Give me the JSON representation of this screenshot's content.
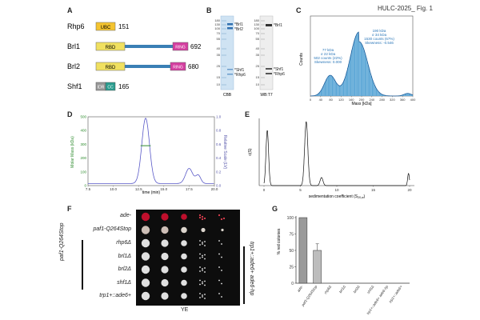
{
  "figure_title": "HULC-2025_ Fig. 1",
  "panels": {
    "A": {
      "label": "A",
      "proteins": [
        {
          "name": "Rhp6",
          "length": "151",
          "domains": [
            "UBC"
          ]
        },
        {
          "name": "Brl1",
          "length": "692",
          "domains": [
            "RBD",
            "RING"
          ]
        },
        {
          "name": "Brl2",
          "length": "680",
          "domains": [
            "RBD",
            "RING"
          ]
        },
        {
          "name": "Shf1",
          "length": "165",
          "domains": [
            "IDR",
            "CC"
          ]
        }
      ]
    },
    "B": {
      "label": "B",
      "markers": [
        "180",
        "130",
        "100",
        "70",
        "55",
        "40",
        "35",
        "25",
        "15",
        "10"
      ],
      "lane_labels": [
        "CBB",
        "WB:T7"
      ],
      "cbb_bands": [
        "Brl1",
        "Brl2",
        "Shf1",
        "Rhp6"
      ],
      "wb_bands": [
        "Brl1",
        "Shf1",
        "Rhp6"
      ],
      "star": "*"
    },
    "C": {
      "label": "C",
      "peak1": [
        "77 kDa",
        "σ 22 kDa",
        "502 counts (22%)",
        "Skewness: 0.000"
      ],
      "peak2": [
        "190 kDa",
        "σ 34 kDa",
        "1530 counts (67%)",
        "Skewness: -0.546"
      ],
      "xlabel": "Mass [kDa]",
      "ylabel": "Counts",
      "xticks": [
        "0",
        "40",
        "80",
        "120",
        "160",
        "200",
        "240",
        "280",
        "320",
        "360",
        "400"
      ]
    },
    "D": {
      "label": "D",
      "xlabel": "time (min)",
      "ylabel_left": "Molar Mass (kDa)",
      "ylabel_right": "Relative Scale (LV)",
      "xticks": [
        "7.5",
        "10.0",
        "12.5",
        "15.0",
        "17.5",
        "20.0"
      ],
      "yticks_left": [
        "0",
        "100",
        "200",
        "300",
        "400",
        "500"
      ],
      "yticks_right": [
        "0.0",
        "0.2",
        "0.4",
        "0.6",
        "0.8",
        "1.0"
      ]
    },
    "E": {
      "label": "E",
      "xlabel": "sedimentation coefficient (S",
      "xlabel_sub": "20,w",
      "xlabel_end": ")",
      "ylabel": "c(S)",
      "xticks": [
        "0",
        "5",
        "10",
        "15",
        "20"
      ]
    },
    "F": {
      "label": "F",
      "rows": [
        "ade-",
        "paf1-Q264Stop",
        "rhp6Δ",
        "brl1Δ",
        "brl2Δ",
        "shf1Δ",
        "trp1+::ade6+"
      ],
      "side_label_left": "paf1-Q264Stop",
      "side_label_right": "trp1+::ade6+ ade6-hp",
      "medium": "YE"
    },
    "G": {
      "label": "G",
      "ylabel": "% red colonies",
      "yticks": [
        "0",
        "25",
        "50",
        "75",
        "100"
      ],
      "categories": [
        "ade-",
        "paf1-Q264Stop",
        "rhp6Δ",
        "brl1Δ",
        "brl2Δ",
        "shf1Δ",
        "trp1+::ade6+ ade6-hp",
        "trp1+::ade6+"
      ],
      "categories_group": "paf1-Q264Stop;ade6-hp; trp1+::ade6+"
    }
  },
  "chart_data": [
    {
      "type": "bar",
      "panel": "G",
      "categories": [
        "ade-",
        "paf1-Q264Stop",
        "rhp6Δ",
        "brl1Δ",
        "brl2Δ",
        "shf1Δ",
        "trp1+::ade6+ ade6-hp",
        "trp1+::ade6+"
      ],
      "values": [
        100,
        50,
        0,
        0,
        0,
        0,
        0,
        0
      ],
      "error": [
        0,
        10,
        0,
        0,
        0,
        0,
        0,
        0
      ],
      "ylabel": "% red colonies",
      "ylim": [
        0,
        100
      ]
    },
    {
      "type": "area",
      "panel": "C",
      "xlabel": "Mass [kDa]",
      "ylabel": "Counts",
      "xlim": [
        0,
        400
      ],
      "peaks_kDa": [
        77,
        190
      ]
    },
    {
      "type": "line",
      "panel": "D",
      "xlabel": "time (min)",
      "xlim": [
        7.5,
        20.0
      ],
      "peak_time": 13.2
    },
    {
      "type": "line",
      "panel": "E",
      "ylabel": "c(S)",
      "xlim": [
        0,
        20
      ],
      "peaks_S": [
        0.5,
        5.8,
        8.0,
        19.8
      ]
    }
  ]
}
